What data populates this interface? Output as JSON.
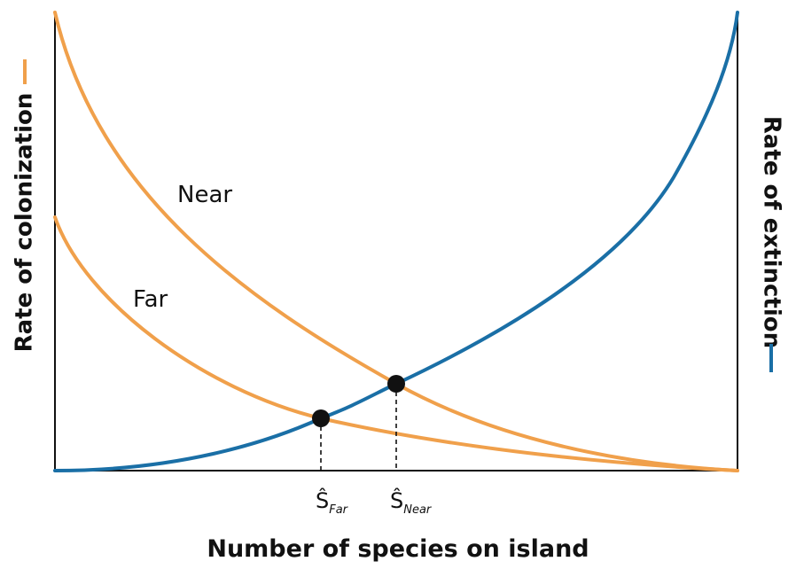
{
  "x_axis_title": "Number of species on island",
  "y_axis_left_title": "Rate of colonization",
  "y_axis_right_title": "Rate of extinction",
  "curve_labels": {
    "near": "Near",
    "far": "Far"
  },
  "equilibrium": {
    "far": {
      "symbol": "Ŝ",
      "subscript": "Far"
    },
    "near": {
      "symbol": "Ŝ",
      "subscript": "Near"
    }
  },
  "colors": {
    "colonization": "#F0A04B",
    "extinction": "#1A6FA6",
    "axes": "#111111"
  }
}
